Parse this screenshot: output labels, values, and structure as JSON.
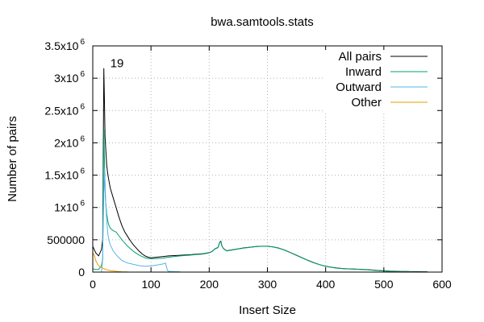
{
  "chart_data": {
    "type": "line",
    "title": "bwa.samtools.stats",
    "xlabel": "Insert Size",
    "ylabel": "Number of pairs",
    "xlim": [
      0,
      600
    ],
    "ylim": [
      0,
      3500000
    ],
    "grid": true,
    "legend_position": "top-right",
    "x_ticks": [
      {
        "value": 0,
        "label": "0"
      },
      {
        "value": 100,
        "label": "100"
      },
      {
        "value": 200,
        "label": "200"
      },
      {
        "value": 300,
        "label": "300"
      },
      {
        "value": 400,
        "label": "400"
      },
      {
        "value": 500,
        "label": "500"
      },
      {
        "value": 600,
        "label": "600"
      }
    ],
    "y_ticks": [
      {
        "value": 0,
        "base": "0",
        "exp": ""
      },
      {
        "value": 500000,
        "base": "500000",
        "exp": ""
      },
      {
        "value": 1000000,
        "base": "1x10",
        "exp": "6"
      },
      {
        "value": 1500000,
        "base": "1.5x10",
        "exp": "6"
      },
      {
        "value": 2000000,
        "base": "2x10",
        "exp": "6"
      },
      {
        "value": 2500000,
        "base": "2.5x10",
        "exp": "6"
      },
      {
        "value": 3000000,
        "base": "3x10",
        "exp": "6"
      },
      {
        "value": 3500000,
        "base": "3.5x10",
        "exp": "6"
      }
    ],
    "annotations": [
      {
        "text": "19",
        "x": 19,
        "y": 3120000
      }
    ],
    "series": [
      {
        "name": "All pairs",
        "color": "#000000",
        "x": [
          0,
          5,
          10,
          15,
          17,
          18,
          19,
          20,
          21,
          22,
          24,
          26,
          28,
          30,
          35,
          40,
          45,
          50,
          55,
          60,
          65,
          70,
          75,
          80,
          85,
          90,
          95,
          100,
          110,
          120,
          130,
          150,
          170,
          190,
          200,
          205,
          210,
          215,
          218,
          220,
          222,
          225,
          230,
          240,
          250,
          260,
          270,
          280,
          290,
          300,
          310,
          320,
          330,
          340,
          350,
          360,
          370,
          380,
          390,
          400,
          410,
          420,
          430,
          440,
          450,
          460,
          470,
          480,
          490,
          500,
          510,
          520,
          530,
          540,
          550,
          560,
          570,
          575
        ],
        "y": [
          400000,
          300000,
          250000,
          350000,
          500000,
          1800000,
          3150000,
          2700000,
          2100000,
          1950000,
          1650000,
          1500000,
          1400000,
          1300000,
          1150000,
          1000000,
          850000,
          720000,
          620000,
          550000,
          480000,
          420000,
          370000,
          320000,
          280000,
          250000,
          230000,
          220000,
          230000,
          240000,
          250000,
          260000,
          270000,
          285000,
          300000,
          320000,
          360000,
          380000,
          460000,
          480000,
          400000,
          360000,
          330000,
          345000,
          360000,
          375000,
          385000,
          395000,
          400000,
          400000,
          390000,
          370000,
          340000,
          300000,
          260000,
          220000,
          180000,
          145000,
          115000,
          90000,
          75000,
          62000,
          55000,
          50000,
          47000,
          42000,
          38000,
          32000,
          25000,
          20000,
          15000,
          12000,
          10000,
          9000,
          7000,
          6000,
          5000,
          5000
        ]
      },
      {
        "name": "Inward",
        "color": "#009e73",
        "x": [
          0,
          5,
          10,
          15,
          17,
          18,
          19,
          20,
          21,
          22,
          24,
          26,
          28,
          30,
          35,
          40,
          45,
          50,
          55,
          60,
          65,
          70,
          75,
          80,
          85,
          90,
          95,
          100,
          110,
          120,
          130,
          150,
          170,
          190,
          200,
          205,
          210,
          215,
          218,
          220,
          222,
          225,
          230,
          240,
          250,
          260,
          270,
          280,
          290,
          300,
          310,
          320,
          330,
          340,
          350,
          360,
          370,
          380,
          390,
          400,
          410,
          420,
          430,
          440,
          450,
          460,
          470,
          480,
          490,
          500,
          510,
          520,
          530,
          540,
          550,
          560,
          570,
          575
        ],
        "y": [
          50000,
          40000,
          40000,
          100000,
          200000,
          1200000,
          2200000,
          1800000,
          1300000,
          1100000,
          900000,
          780000,
          720000,
          680000,
          640000,
          620000,
          560000,
          500000,
          450000,
          400000,
          360000,
          320000,
          290000,
          260000,
          240000,
          220000,
          210000,
          205000,
          210000,
          215000,
          230000,
          250000,
          265000,
          280000,
          298000,
          318000,
          358000,
          378000,
          455000,
          475000,
          398000,
          358000,
          328000,
          343000,
          358000,
          373000,
          383000,
          393000,
          398000,
          398000,
          388000,
          368000,
          338000,
          298000,
          258000,
          218000,
          178000,
          143000,
          113000,
          88000,
          73000,
          60000,
          53000,
          48000,
          45000,
          40000,
          36000,
          30000,
          23000,
          18000,
          13000,
          10000,
          8000,
          7000,
          5000,
          4000,
          3000,
          3000
        ]
      },
      {
        "name": "Outward",
        "color": "#56b4e9",
        "x": [
          0,
          10,
          15,
          17,
          18,
          19,
          20,
          21,
          22,
          24,
          26,
          28,
          30,
          35,
          40,
          45,
          50,
          60,
          70,
          80,
          90,
          100,
          110,
          120,
          125,
          128,
          130,
          140,
          150
        ],
        "y": [
          0,
          0,
          0,
          200000,
          800000,
          1200000,
          1600000,
          1400000,
          1100000,
          800000,
          580000,
          480000,
          420000,
          330000,
          270000,
          220000,
          180000,
          140000,
          120000,
          100000,
          90000,
          95000,
          110000,
          125000,
          140000,
          30000,
          12000,
          8000,
          5000
        ]
      },
      {
        "name": "Other",
        "color": "#e69f00",
        "x": [
          0,
          3,
          5,
          8,
          10,
          15,
          20,
          25,
          30,
          40,
          50,
          60
        ],
        "y": [
          300000,
          250000,
          180000,
          130000,
          100000,
          70000,
          50000,
          35000,
          25000,
          12000,
          5000,
          2000
        ]
      }
    ]
  }
}
